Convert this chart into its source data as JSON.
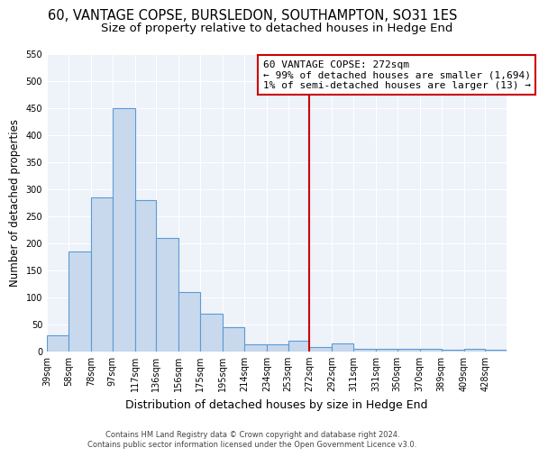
{
  "title": "60, VANTAGE COPSE, BURSLEDON, SOUTHAMPTON, SO31 1ES",
  "subtitle": "Size of property relative to detached houses in Hedge End",
  "xlabel": "Distribution of detached houses by size in Hedge End",
  "ylabel": "Number of detached properties",
  "bin_labels": [
    "39sqm",
    "58sqm",
    "78sqm",
    "97sqm",
    "117sqm",
    "136sqm",
    "156sqm",
    "175sqm",
    "195sqm",
    "214sqm",
    "234sqm",
    "253sqm",
    "272sqm",
    "292sqm",
    "311sqm",
    "331sqm",
    "350sqm",
    "370sqm",
    "389sqm",
    "409sqm",
    "428sqm"
  ],
  "bar_values": [
    30,
    185,
    285,
    450,
    280,
    210,
    110,
    70,
    45,
    13,
    13,
    20,
    8,
    15,
    5,
    5,
    5,
    5,
    3,
    5,
    3
  ],
  "bin_edges": [
    39,
    58,
    78,
    97,
    117,
    136,
    156,
    175,
    195,
    214,
    234,
    253,
    272,
    292,
    311,
    331,
    350,
    370,
    389,
    409,
    428,
    447
  ],
  "bar_color": "#c9d9ed",
  "bar_edge_color": "#5b9bd5",
  "vline_x": 272,
  "vline_color": "#cc0000",
  "ylim": [
    0,
    550
  ],
  "yticks": [
    0,
    50,
    100,
    150,
    200,
    250,
    300,
    350,
    400,
    450,
    500,
    550
  ],
  "annotation_title": "60 VANTAGE COPSE: 272sqm",
  "annotation_line1": "← 99% of detached houses are smaller (1,694)",
  "annotation_line2": "1% of semi-detached houses are larger (13) →",
  "annotation_box_color": "#ffffff",
  "annotation_border_color": "#cc0000",
  "footer_line1": "Contains HM Land Registry data © Crown copyright and database right 2024.",
  "footer_line2": "Contains public sector information licensed under the Open Government Licence v3.0.",
  "bg_color": "#eef2f9",
  "title_fontsize": 10.5,
  "subtitle_fontsize": 9.5,
  "xlabel_fontsize": 9,
  "ylabel_fontsize": 8.5
}
